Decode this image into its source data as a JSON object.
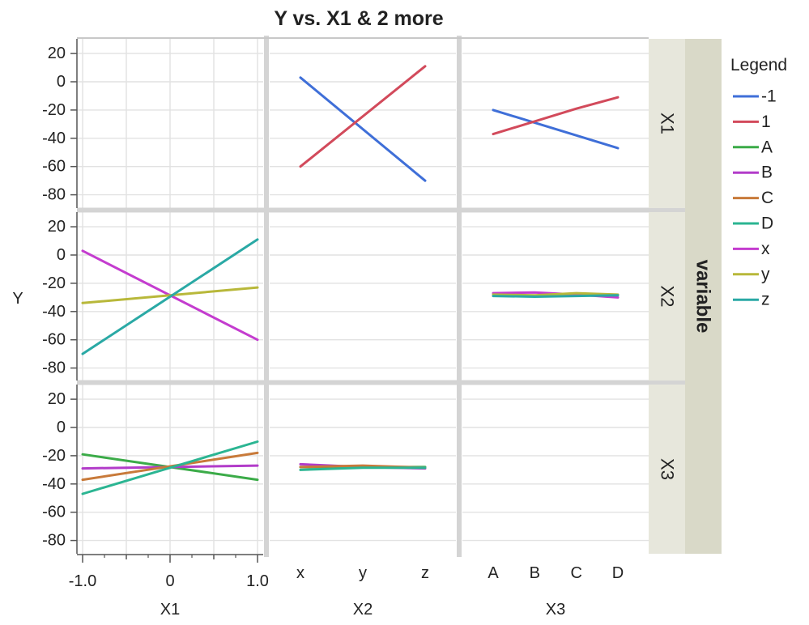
{
  "chart_data": {
    "type": "line",
    "title": "Y vs. X1 & 2 more",
    "ylabel": "Y",
    "ylim": [
      -90,
      30
    ],
    "yticks": [
      20,
      0,
      -20,
      -40,
      -60,
      -80
    ],
    "grid": true,
    "legend_position": "right",
    "columns": [
      {
        "label": "X1",
        "kind": "numeric",
        "xlim": [
          -1,
          1
        ],
        "ticks": [
          -1,
          0,
          1
        ],
        "tick_labels": [
          "-1.0",
          "0",
          "1.0"
        ]
      },
      {
        "label": "X2",
        "kind": "categorical",
        "categories": [
          "x",
          "y",
          "z"
        ]
      },
      {
        "label": "X3",
        "kind": "categorical",
        "categories": [
          "A",
          "B",
          "C",
          "D"
        ]
      }
    ],
    "rows": [
      "X1",
      "X2",
      "X3"
    ],
    "group_strip": "variable",
    "legend": {
      "title": "Legend",
      "items": [
        {
          "name": "-1",
          "color": "#3f6fd8"
        },
        {
          "name": "1",
          "color": "#d24a5b"
        },
        {
          "name": "A",
          "color": "#3bab48"
        },
        {
          "name": "B",
          "color": "#b23cc9"
        },
        {
          "name": "C",
          "color": "#c87a3a"
        },
        {
          "name": "D",
          "color": "#2bb592"
        },
        {
          "name": "x",
          "color": "#c43ccf"
        },
        {
          "name": "y",
          "color": "#b8b83a"
        },
        {
          "name": "z",
          "color": "#2aa9a5"
        }
      ]
    },
    "panels": [
      {
        "row": 0,
        "col": 1,
        "series": [
          {
            "name": "-1",
            "x": [
              "x",
              "z"
            ],
            "y": [
              3,
              -70
            ]
          },
          {
            "name": "1",
            "x": [
              "x",
              "z"
            ],
            "y": [
              -60,
              11
            ]
          }
        ]
      },
      {
        "row": 0,
        "col": 2,
        "series": [
          {
            "name": "-1",
            "x": [
              "A",
              "D"
            ],
            "y": [
              -20,
              -47
            ]
          },
          {
            "name": "1",
            "x": [
              "A",
              "B",
              "C",
              "D"
            ],
            "y": [
              -37,
              -28,
              -19,
              -11
            ]
          }
        ]
      },
      {
        "row": 1,
        "col": 0,
        "series": [
          {
            "name": "x",
            "x": [
              -1,
              1
            ],
            "y": [
              3,
              -60
            ]
          },
          {
            "name": "y",
            "x": [
              -1,
              1
            ],
            "y": [
              -34,
              -23
            ]
          },
          {
            "name": "z",
            "x": [
              -1,
              1
            ],
            "y": [
              -70,
              11
            ]
          }
        ]
      },
      {
        "row": 1,
        "col": 2,
        "series": [
          {
            "name": "x",
            "x": [
              "A",
              "B",
              "C",
              "D"
            ],
            "y": [
              -27,
              -26.5,
              -28,
              -30
            ]
          },
          {
            "name": "y",
            "x": [
              "A",
              "B",
              "C",
              "D"
            ],
            "y": [
              -28,
              -28.5,
              -27,
              -28
            ]
          },
          {
            "name": "z",
            "x": [
              "A",
              "B",
              "C",
              "D"
            ],
            "y": [
              -29,
              -29.5,
              -29,
              -28.5
            ]
          }
        ]
      },
      {
        "row": 2,
        "col": 0,
        "series": [
          {
            "name": "A",
            "x": [
              -1,
              1
            ],
            "y": [
              -19,
              -37
            ]
          },
          {
            "name": "B",
            "x": [
              -1,
              1
            ],
            "y": [
              -29,
              -27
            ]
          },
          {
            "name": "C",
            "x": [
              -1,
              1
            ],
            "y": [
              -37,
              -18
            ]
          },
          {
            "name": "D",
            "x": [
              -1,
              1
            ],
            "y": [
              -47,
              -10
            ]
          }
        ]
      },
      {
        "row": 2,
        "col": 1,
        "series": [
          {
            "name": "A",
            "x": [
              "x",
              "y",
              "z"
            ],
            "y": [
              -28,
              -28,
              -28
            ]
          },
          {
            "name": "B",
            "x": [
              "x",
              "y",
              "z"
            ],
            "y": [
              -26,
              -28,
              -29
            ]
          },
          {
            "name": "C",
            "x": [
              "x",
              "y",
              "z"
            ],
            "y": [
              -28,
              -27,
              -28.5
            ]
          },
          {
            "name": "D",
            "x": [
              "x",
              "y",
              "z"
            ],
            "y": [
              -30,
              -28.5,
              -28.5
            ]
          }
        ]
      }
    ]
  }
}
